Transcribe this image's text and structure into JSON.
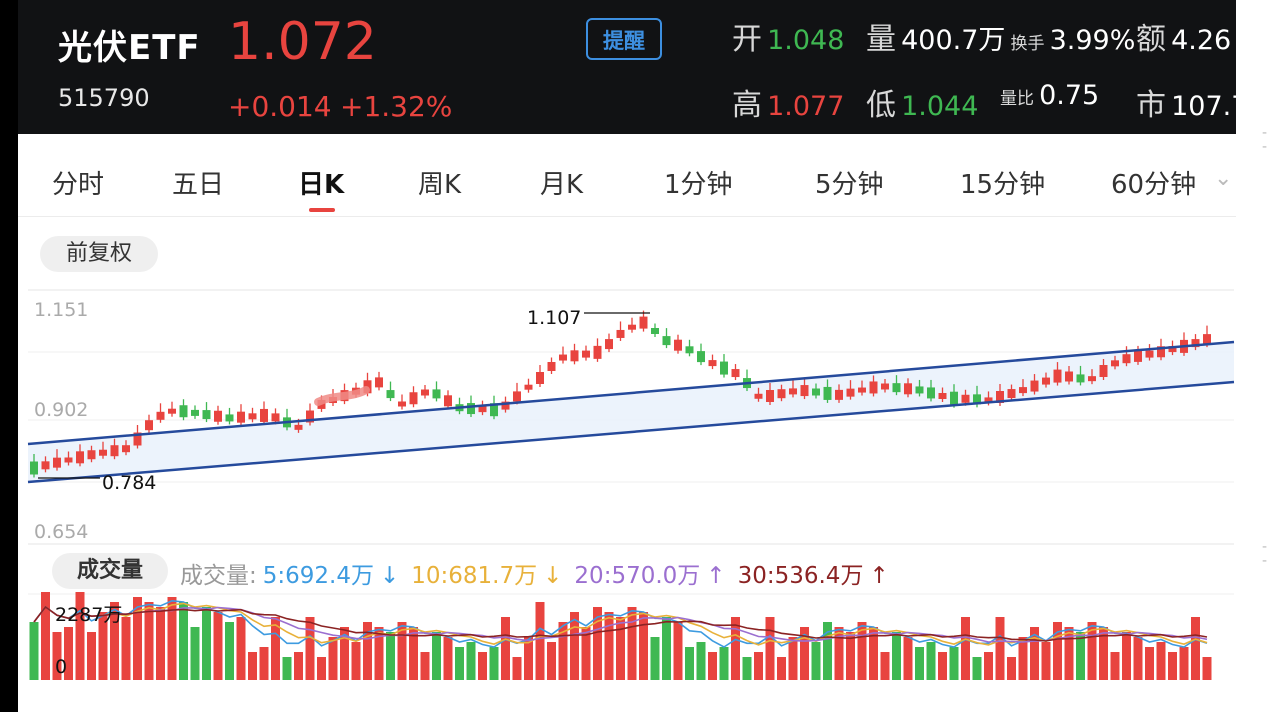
{
  "header": {
    "name": "光伏ETF",
    "code": "515790",
    "price": "1.072",
    "change": "+0.014",
    "change_pct": "+1.32%",
    "alert_label": "提醒",
    "stats": {
      "open_label": "开",
      "open": "1.048",
      "volume_label": "量",
      "volume": "400.7万",
      "turnover_label": "换手",
      "turnover": "3.99%",
      "amount_label": "额",
      "amount": "4.26",
      "high_label": "高",
      "high": "1.077",
      "low_label": "低",
      "low": "1.044",
      "vol_ratio_label": "量比",
      "vol_ratio": "0.75",
      "mkt_label": "市",
      "mkt": "107.7"
    },
    "colors": {
      "up": "#e8443f",
      "down": "#3fb852",
      "bg": "#111214"
    }
  },
  "tabs": [
    {
      "label": "分时",
      "active": false
    },
    {
      "label": "五日",
      "active": false
    },
    {
      "label": "日K",
      "active": true
    },
    {
      "label": "周K",
      "active": false
    },
    {
      "label": "月K",
      "active": false
    },
    {
      "label": "1分钟",
      "active": false
    },
    {
      "label": "5分钟",
      "active": false
    },
    {
      "label": "15分钟",
      "active": false
    },
    {
      "label": "60分钟",
      "active": false
    }
  ],
  "adjust_label": "前复权",
  "chart_data": {
    "type": "candlestick",
    "ylim": [
      0.654,
      1.151
    ],
    "y_ticks": [
      "1.151",
      "0.902",
      "0.654"
    ],
    "high_mark": {
      "label": "1.107",
      "value": 1.107
    },
    "low_mark": {
      "label": "0.784",
      "value": 0.784
    },
    "channel": {
      "upper": [
        [
          0,
          0.827
        ],
        [
          100,
          1.019
        ]
      ],
      "lower": [
        [
          0,
          0.784
        ],
        [
          100,
          0.933
        ]
      ]
    },
    "volume": {
      "label": "成交量",
      "ma_prefix": "成交量:",
      "ma": [
        {
          "label": "5:692.4万",
          "color": "#3d9be0",
          "arrow": "↓"
        },
        {
          "label": "10:681.7万",
          "color": "#e8b13a",
          "arrow": "↓"
        },
        {
          "label": "20:570.0万",
          "color": "#9b6fd0",
          "arrow": "↑"
        },
        {
          "label": "30:536.4万",
          "color": "#8b2323",
          "arrow": "↑"
        }
      ],
      "max_label": "2287万",
      "zero_label": "0"
    }
  }
}
